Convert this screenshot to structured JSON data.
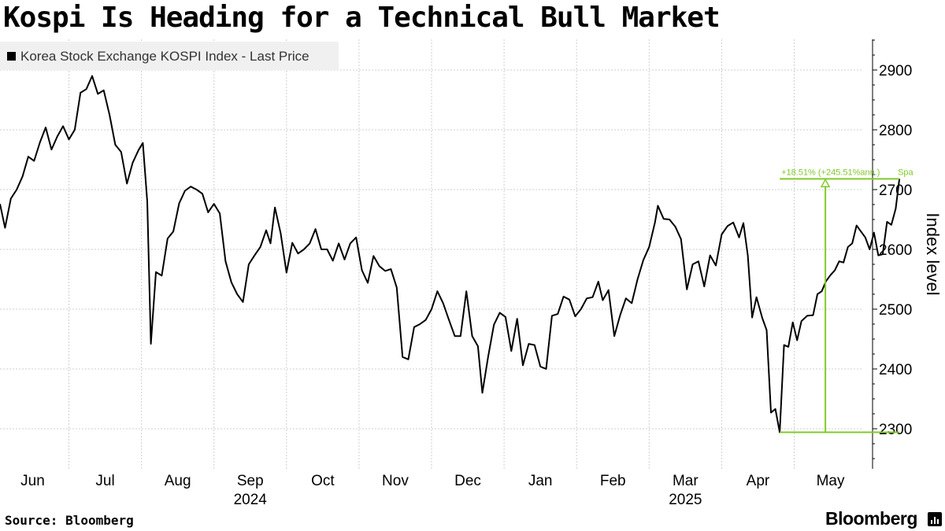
{
  "title": "Kospi Is Heading for a Technical Bull Market",
  "legend": {
    "label": "Korea Stock Exchange KOSPI Index - Last Price",
    "color": "#000000"
  },
  "source": "Source: Bloomberg",
  "brand": "Bloomberg",
  "icons": {
    "brand": "bloomberg-terminal-icon"
  },
  "chart_data": {
    "type": "line",
    "title": "Kospi Is Heading for a Technical Bull Market",
    "ylabel": "Index level",
    "xlabel": "",
    "ylim": [
      2235,
      2960
    ],
    "yticks": [
      2300,
      2400,
      2500,
      2600,
      2700,
      2800,
      2900
    ],
    "month_labels": [
      "Jun",
      "Jul",
      "Aug",
      "Sep",
      "Oct",
      "Nov",
      "Dec",
      "Jan",
      "Feb",
      "Mar",
      "Apr",
      "May"
    ],
    "month_label_x": [
      0,
      1,
      2,
      3,
      4,
      5,
      6,
      7,
      8,
      9,
      10,
      11
    ],
    "year_labels": [
      {
        "text": "2024",
        "month_index": 3
      },
      {
        "text": "2025",
        "month_index": 9
      }
    ],
    "grid": true,
    "legend_position": "top-left",
    "x_range": [
      -0.45,
      11.45
    ],
    "series": [
      {
        "name": "Korea Stock Exchange KOSPI Index - Last Price",
        "color": "#000000",
        "points": [
          [
            -0.45,
            2676
          ],
          [
            -0.38,
            2636
          ],
          [
            -0.3,
            2685
          ],
          [
            -0.22,
            2700
          ],
          [
            -0.14,
            2722
          ],
          [
            -0.06,
            2755
          ],
          [
            0.02,
            2748
          ],
          [
            0.1,
            2779
          ],
          [
            0.18,
            2804
          ],
          [
            0.26,
            2767
          ],
          [
            0.34,
            2789
          ],
          [
            0.42,
            2806
          ],
          [
            0.5,
            2784
          ],
          [
            0.58,
            2800
          ],
          [
            0.66,
            2862
          ],
          [
            0.74,
            2868
          ],
          [
            0.82,
            2890
          ],
          [
            0.9,
            2860
          ],
          [
            0.98,
            2866
          ],
          [
            1.06,
            2825
          ],
          [
            1.14,
            2775
          ],
          [
            1.22,
            2763
          ],
          [
            1.3,
            2710
          ],
          [
            1.38,
            2745
          ],
          [
            1.46,
            2766
          ],
          [
            1.52,
            2778
          ],
          [
            1.58,
            2680
          ],
          [
            1.63,
            2442
          ],
          [
            1.7,
            2562
          ],
          [
            1.78,
            2556
          ],
          [
            1.86,
            2618
          ],
          [
            1.94,
            2630
          ],
          [
            2.02,
            2677
          ],
          [
            2.1,
            2698
          ],
          [
            2.18,
            2705
          ],
          [
            2.26,
            2700
          ],
          [
            2.34,
            2693
          ],
          [
            2.42,
            2662
          ],
          [
            2.5,
            2676
          ],
          [
            2.58,
            2660
          ],
          [
            2.66,
            2580
          ],
          [
            2.74,
            2545
          ],
          [
            2.82,
            2525
          ],
          [
            2.9,
            2512
          ],
          [
            2.98,
            2575
          ],
          [
            3.06,
            2590
          ],
          [
            3.14,
            2604
          ],
          [
            3.22,
            2632
          ],
          [
            3.28,
            2610
          ],
          [
            3.34,
            2670
          ],
          [
            3.42,
            2627
          ],
          [
            3.5,
            2561
          ],
          [
            3.58,
            2611
          ],
          [
            3.66,
            2593
          ],
          [
            3.74,
            2600
          ],
          [
            3.82,
            2610
          ],
          [
            3.9,
            2634
          ],
          [
            3.98,
            2600
          ],
          [
            4.06,
            2600
          ],
          [
            4.14,
            2581
          ],
          [
            4.22,
            2610
          ],
          [
            4.3,
            2583
          ],
          [
            4.38,
            2610
          ],
          [
            4.46,
            2620
          ],
          [
            4.54,
            2565
          ],
          [
            4.62,
            2544
          ],
          [
            4.7,
            2589
          ],
          [
            4.78,
            2572
          ],
          [
            4.86,
            2564
          ],
          [
            4.94,
            2567
          ],
          [
            5.02,
            2536
          ],
          [
            5.1,
            2420
          ],
          [
            5.18,
            2416
          ],
          [
            5.26,
            2470
          ],
          [
            5.34,
            2475
          ],
          [
            5.42,
            2482
          ],
          [
            5.5,
            2500
          ],
          [
            5.58,
            2530
          ],
          [
            5.66,
            2510
          ],
          [
            5.74,
            2482
          ],
          [
            5.82,
            2455
          ],
          [
            5.9,
            2455
          ],
          [
            5.98,
            2530
          ],
          [
            6.06,
            2455
          ],
          [
            6.14,
            2438
          ],
          [
            6.2,
            2360
          ],
          [
            6.28,
            2420
          ],
          [
            6.36,
            2474
          ],
          [
            6.44,
            2494
          ],
          [
            6.52,
            2487
          ],
          [
            6.6,
            2430
          ],
          [
            6.68,
            2484
          ],
          [
            6.76,
            2406
          ],
          [
            6.84,
            2442
          ],
          [
            6.92,
            2440
          ],
          [
            7.0,
            2404
          ],
          [
            7.08,
            2400
          ],
          [
            7.16,
            2489
          ],
          [
            7.24,
            2492
          ],
          [
            7.32,
            2521
          ],
          [
            7.4,
            2516
          ],
          [
            7.48,
            2488
          ],
          [
            7.56,
            2500
          ],
          [
            7.64,
            2518
          ],
          [
            7.72,
            2520
          ],
          [
            7.8,
            2546
          ],
          [
            7.86,
            2515
          ],
          [
            7.94,
            2532
          ],
          [
            8.02,
            2455
          ],
          [
            8.1,
            2490
          ],
          [
            8.18,
            2518
          ],
          [
            8.26,
            2510
          ],
          [
            8.34,
            2550
          ],
          [
            8.42,
            2582
          ],
          [
            8.5,
            2604
          ],
          [
            8.58,
            2645
          ],
          [
            8.62,
            2673
          ],
          [
            8.7,
            2651
          ],
          [
            8.78,
            2650
          ],
          [
            8.86,
            2638
          ],
          [
            8.94,
            2617
          ],
          [
            9.02,
            2533
          ],
          [
            9.1,
            2575
          ],
          [
            9.18,
            2580
          ],
          [
            9.26,
            2538
          ],
          [
            9.34,
            2590
          ],
          [
            9.42,
            2573
          ],
          [
            9.5,
            2625
          ],
          [
            9.58,
            2639
          ],
          [
            9.66,
            2645
          ],
          [
            9.74,
            2620
          ],
          [
            9.8,
            2644
          ],
          [
            9.86,
            2590
          ],
          [
            9.92,
            2486
          ],
          [
            9.98,
            2520
          ],
          [
            10.06,
            2485
          ],
          [
            10.12,
            2465
          ],
          [
            10.18,
            2327
          ],
          [
            10.24,
            2333
          ],
          [
            10.3,
            2294
          ],
          [
            10.36,
            2440
          ],
          [
            10.42,
            2437
          ],
          [
            10.48,
            2478
          ],
          [
            10.54,
            2448
          ],
          [
            10.6,
            2480
          ],
          [
            10.68,
            2489
          ],
          [
            10.76,
            2490
          ],
          [
            10.82,
            2525
          ],
          [
            10.88,
            2530
          ],
          [
            10.94,
            2547
          ],
          [
            11.0,
            2557
          ],
          [
            11.06,
            2565
          ],
          [
            11.12,
            2580
          ],
          [
            11.18,
            2578
          ],
          [
            11.24,
            2604
          ],
          [
            11.3,
            2610
          ],
          [
            11.36,
            2640
          ],
          [
            11.42,
            2630
          ],
          [
            11.48,
            2620
          ],
          [
            11.54,
            2600
          ],
          [
            11.6,
            2628
          ],
          [
            11.66,
            2590
          ],
          [
            11.72,
            2592
          ],
          [
            11.78,
            2646
          ],
          [
            11.84,
            2641
          ],
          [
            11.9,
            2668
          ],
          [
            11.95,
            2718
          ]
        ]
      }
    ],
    "annotation": {
      "text": "+18.51% (+245.51%ann.)",
      "text_suffix": "Spa",
      "color": "#82c92a",
      "start": [
        10.3,
        2294
      ],
      "end": [
        11.95,
        2718
      ],
      "arrow_x": 10.93
    }
  }
}
